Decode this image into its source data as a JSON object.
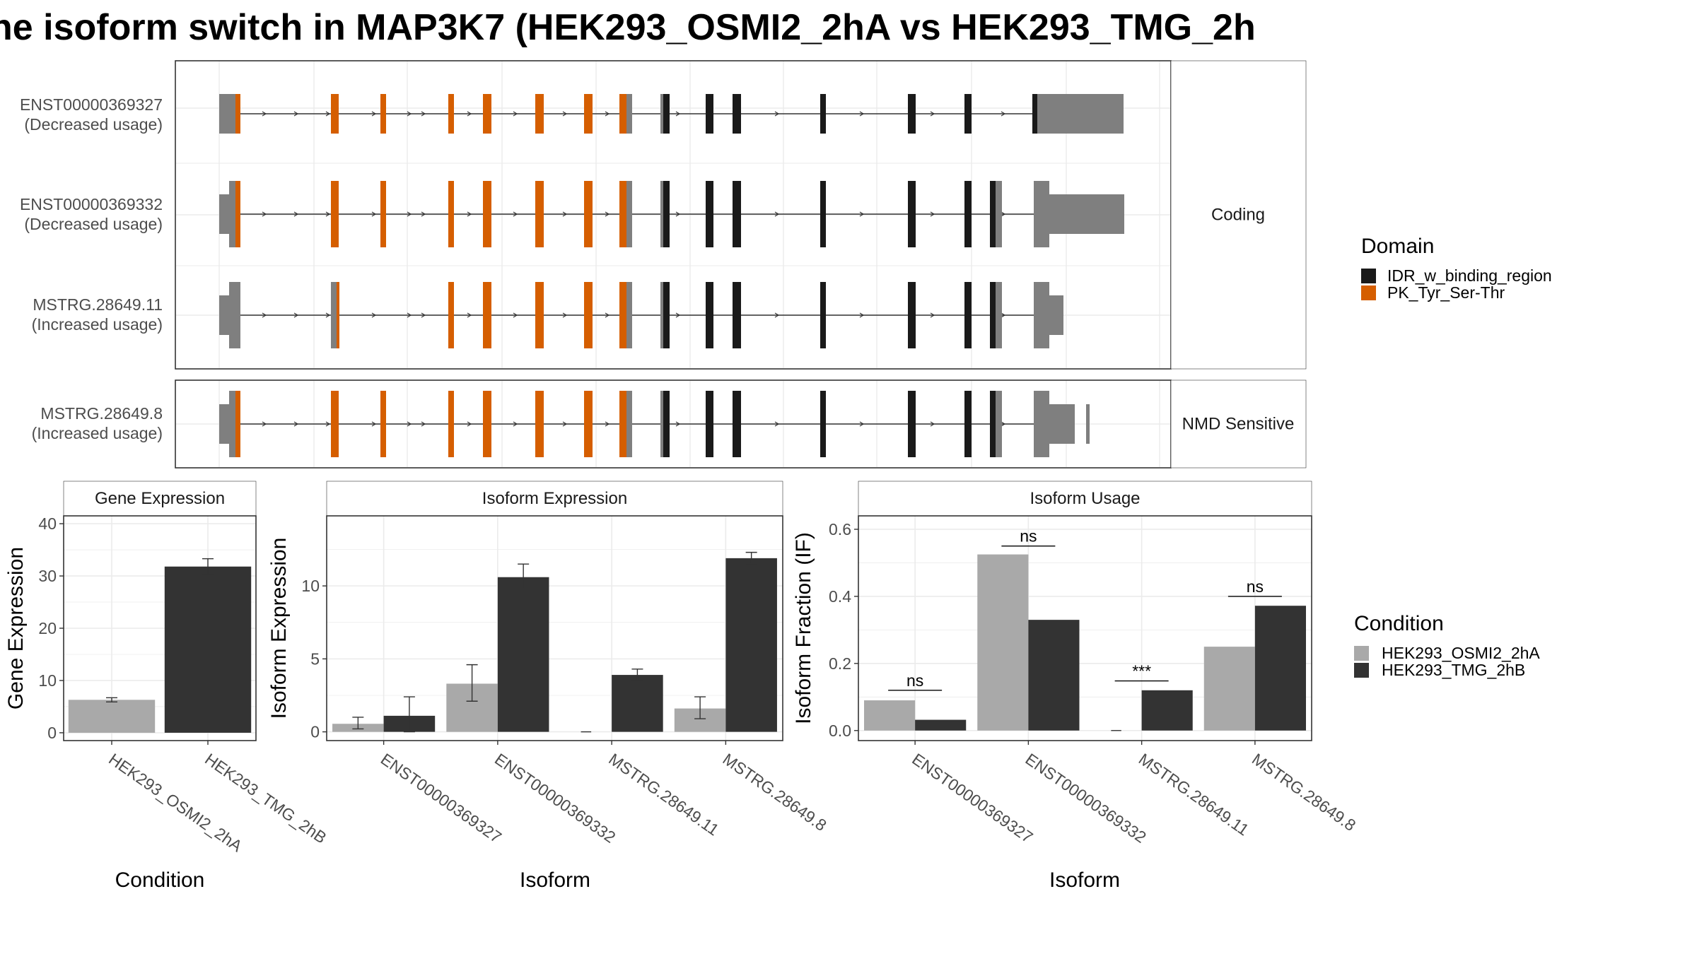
{
  "title": "ne isoform switch in MAP3K7 (HEK293_OSMI2_2hA vs HEK293_TMG_2h",
  "colors": {
    "pk_domain": "#D55E00",
    "idr_domain": "#1A1A1A",
    "utr": "#7F7F7F",
    "condition_a": "#A9A9A9",
    "condition_b": "#333333"
  },
  "transcript_plot": {
    "facets": [
      "Coding",
      "NMD Sensitive"
    ],
    "isoforms": [
      {
        "id": "ENST00000369327",
        "usage": "(Decreased usage)",
        "facet": "Coding"
      },
      {
        "id": "ENST00000369332",
        "usage": "(Decreased usage)",
        "facet": "Coding"
      },
      {
        "id": "MSTRG.28649.11",
        "usage": "(Increased usage)",
        "facet": "Coding"
      },
      {
        "id": "MSTRG.28649.8",
        "usage": "(Increased usage)",
        "facet": "NMD Sensitive"
      }
    ],
    "legend": {
      "title": "Domain",
      "items": [
        {
          "label": "IDR_w_binding_region",
          "color": "#1A1A1A"
        },
        {
          "label": "PK_Tyr_Ser-Thr",
          "color": "#D55E00"
        }
      ]
    }
  },
  "condition_legend": {
    "title": "Condition",
    "items": [
      {
        "label": "HEK293_OSMI2_2hA",
        "color": "#A9A9A9"
      },
      {
        "label": "HEK293_TMG_2hB",
        "color": "#333333"
      }
    ]
  },
  "chart_data": [
    {
      "type": "bar",
      "title": "Gene Expression",
      "xlabel": "Condition",
      "ylabel": "Gene Expression",
      "categories": [
        "HEK293_OSMI2_2hA",
        "HEK293_TMG_2hB"
      ],
      "values": [
        6.3,
        31.8
      ],
      "error": [
        [
          5.9,
          6.7
        ],
        [
          30.3,
          33.3
        ]
      ],
      "ylim": [
        -1.5,
        41.5
      ],
      "yticks": [
        0,
        10,
        20,
        30,
        40
      ]
    },
    {
      "type": "bar",
      "title": "Isoform Expression",
      "xlabel": "Isoform",
      "ylabel": "Isoform Expression",
      "categories": [
        "ENST00000369327",
        "ENST00000369332",
        "MSTRG.28649.11",
        "MSTRG.28649.8"
      ],
      "series": [
        {
          "name": "HEK293_OSMI2_2hA",
          "values": [
            0.55,
            3.3,
            0.0,
            1.6
          ],
          "error": [
            [
              0.2,
              1.0
            ],
            [
              2.1,
              4.6
            ],
            [
              0.0,
              0.0
            ],
            [
              0.9,
              2.4
            ]
          ]
        },
        {
          "name": "HEK293_TMG_2hB",
          "values": [
            1.1,
            10.6,
            3.9,
            11.9
          ],
          "error": [
            [
              0.0,
              2.4
            ],
            [
              9.8,
              11.5
            ],
            [
              3.5,
              4.3
            ],
            [
              11.5,
              12.3
            ]
          ]
        }
      ],
      "ylim": [
        -0.6,
        14.8
      ],
      "yticks": [
        0,
        5,
        10
      ]
    },
    {
      "type": "bar",
      "title": "Isoform Usage",
      "xlabel": "Isoform",
      "ylabel": "Isoform Fraction (IF)",
      "categories": [
        "ENST00000369327",
        "ENST00000369332",
        "MSTRG.28649.11",
        "MSTRG.28649.8"
      ],
      "series": [
        {
          "name": "HEK293_OSMI2_2hA",
          "values": [
            0.09,
            0.525,
            0.0,
            0.25
          ]
        },
        {
          "name": "HEK293_TMG_2hB",
          "values": [
            0.032,
            0.33,
            0.12,
            0.372
          ]
        }
      ],
      "significance": [
        {
          "label": "ns",
          "y": 0.12
        },
        {
          "label": "ns",
          "y": 0.55
        },
        {
          "label": "***",
          "y": 0.148
        },
        {
          "label": "ns",
          "y": 0.4
        }
      ],
      "ylim": [
        -0.03,
        0.64
      ],
      "yticks": [
        0.0,
        0.2,
        0.4,
        0.6
      ],
      "ytick_labels": [
        "0.0",
        "0.2",
        "0.4",
        "0.6"
      ]
    }
  ]
}
